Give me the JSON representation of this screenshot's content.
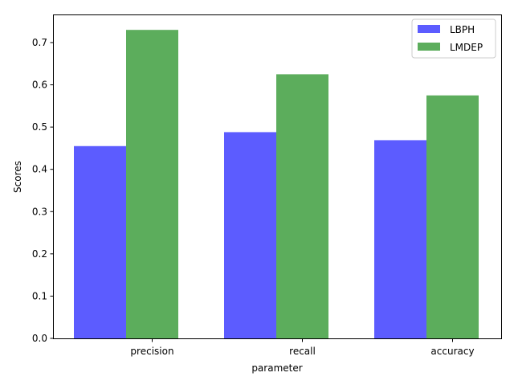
{
  "chart_data": {
    "type": "bar",
    "categories": [
      "precision",
      "recall",
      "accuracy"
    ],
    "series": [
      {
        "name": "LBPH",
        "values": [
          0.455,
          0.488,
          0.469
        ],
        "color": "#3333ff"
      },
      {
        "name": "LMDEP",
        "values": [
          0.73,
          0.625,
          0.575
        ],
        "color": "#339933"
      }
    ],
    "xlabel": "parameter",
    "ylabel": "Scores",
    "ylim": [
      0,
      0.7665
    ],
    "yticks": [
      "0.0",
      "0.1",
      "0.2",
      "0.3",
      "0.4",
      "0.5",
      "0.6",
      "0.7"
    ],
    "grid": false,
    "legend_position": "top-right"
  }
}
